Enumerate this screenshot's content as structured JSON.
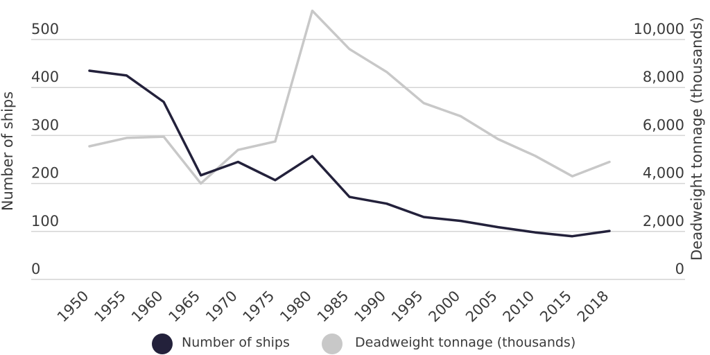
{
  "chart_data": {
    "type": "line",
    "x": [
      "1950",
      "1955",
      "1960",
      "1965",
      "1970",
      "1975",
      "1980",
      "1985",
      "1990",
      "1995",
      "2000",
      "2005",
      "2010",
      "2015",
      "2018"
    ],
    "series": [
      {
        "name": "Number of ships",
        "axis": "left",
        "color": "#23213b",
        "values": [
          435,
          425,
          370,
          217,
          245,
          207,
          257,
          172,
          158,
          130,
          122,
          109,
          98,
          90,
          101
        ]
      },
      {
        "name": "Deadweight tonnage (thousands)",
        "axis": "right",
        "color": "#c8c8c8",
        "values": [
          5550,
          5900,
          5950,
          4000,
          5400,
          5750,
          11200,
          9600,
          8650,
          7350,
          6800,
          5850,
          5150,
          4300,
          4900
        ]
      }
    ],
    "ylabel": "Number of ships",
    "ylabel_right": "Deadweight tonnage (thousands)",
    "ylim": [
      0,
      500
    ],
    "ylim_right": [
      0,
      10000
    ],
    "yticks": [
      "0",
      "100",
      "200",
      "300",
      "400",
      "500"
    ],
    "yticks_right": [
      "0",
      "2,000",
      "4,000",
      "6,000",
      "8,000",
      "10,000"
    ],
    "grid": true,
    "legend": "bottom"
  }
}
